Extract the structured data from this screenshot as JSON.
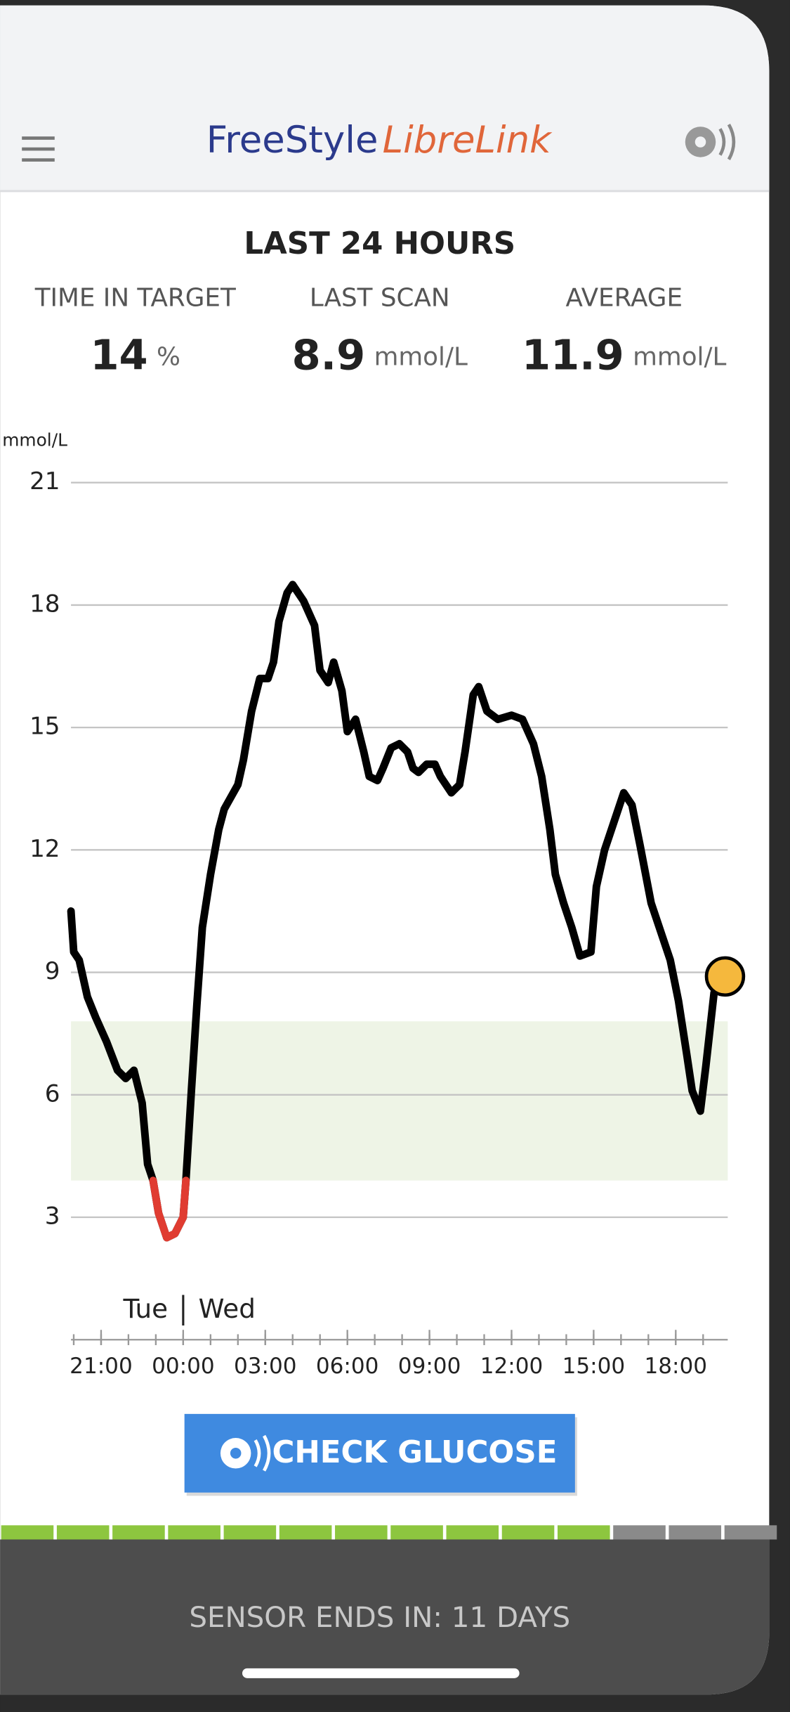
{
  "header": {
    "brand": "FreeStyle",
    "product": "LibreLink"
  },
  "summary": {
    "title": "LAST 24 HOURS",
    "stats": [
      {
        "label": "TIME IN TARGET",
        "value": "14",
        "unit": "%"
      },
      {
        "label": "LAST SCAN",
        "value": "8.9",
        "unit": "mmol/L"
      },
      {
        "label": "AVERAGE",
        "value": "11.9",
        "unit": "mmol/L"
      }
    ]
  },
  "chart_data": {
    "type": "line",
    "y_label": "mmol/L",
    "ylim": [
      0,
      21
    ],
    "yticks": [
      3,
      6,
      9,
      12,
      15,
      18,
      21
    ],
    "grid": true,
    "xlim": [
      19.9,
      43.9
    ],
    "xticks": [
      {
        "value": 21,
        "label": "21:00"
      },
      {
        "value": 24,
        "label": "00:00"
      },
      {
        "value": 27,
        "label": "03:00"
      },
      {
        "value": 30,
        "label": "06:00"
      },
      {
        "value": 33,
        "label": "09:00"
      },
      {
        "value": 36,
        "label": "12:00"
      },
      {
        "value": 39,
        "label": "15:00"
      },
      {
        "value": 42,
        "label": "18:00"
      }
    ],
    "xticks_minor": [
      20,
      21,
      22,
      23,
      24,
      25,
      26,
      27,
      28,
      29,
      30,
      31,
      32,
      33,
      34,
      35,
      36,
      37,
      38,
      39,
      40,
      41,
      42,
      43
    ],
    "day_labels": [
      "Tue",
      "Wed"
    ],
    "target_range": [
      3.9,
      7.8
    ],
    "target_color": "#eef4e6",
    "low_color": "#e03c31",
    "last_point_color": "#f5b83d",
    "x": [
      19.9,
      20.0,
      20.2,
      20.5,
      20.8,
      21.2,
      21.6,
      21.9,
      22.2,
      22.5,
      22.7,
      22.9,
      23.1,
      23.4,
      23.7,
      24.0,
      24.1,
      24.3,
      24.5,
      24.7,
      25.0,
      25.3,
      25.5,
      26.0,
      26.2,
      26.5,
      26.8,
      27.1,
      27.3,
      27.5,
      27.8,
      28.0,
      28.4,
      28.8,
      29.0,
      29.3,
      29.5,
      29.8,
      30.0,
      30.3,
      30.6,
      30.8,
      31.1,
      31.3,
      31.6,
      31.9,
      32.2,
      32.4,
      32.6,
      32.9,
      33.2,
      33.4,
      33.8,
      34.1,
      34.3,
      34.6,
      34.8,
      35.1,
      35.5,
      36.0,
      36.4,
      36.8,
      37.1,
      37.4,
      37.6,
      37.9,
      38.2,
      38.5,
      38.9,
      39.1,
      39.4,
      39.7,
      40.1,
      40.4,
      40.7,
      41.1,
      41.4,
      41.8,
      42.1,
      42.4,
      42.6,
      42.9,
      43.1,
      43.4,
      43.8
    ],
    "series": [
      {
        "color": "#000000",
        "values": [
          10.5,
          9.5,
          9.3,
          8.4,
          7.9,
          7.3,
          6.6,
          6.4,
          6.6,
          5.8,
          4.3,
          3.9,
          3.1,
          2.5,
          2.6,
          3.0,
          3.9,
          6.1,
          8.2,
          10.1,
          11.4,
          12.5,
          13.0,
          13.6,
          14.2,
          15.4,
          16.2,
          16.2,
          16.6,
          17.6,
          18.3,
          18.5,
          18.1,
          17.5,
          16.4,
          16.1,
          16.6,
          15.9,
          14.9,
          15.2,
          14.4,
          13.8,
          13.7,
          14.0,
          14.5,
          14.6,
          14.4,
          14.0,
          13.9,
          14.1,
          14.1,
          13.8,
          13.4,
          13.6,
          14.4,
          15.8,
          16.0,
          15.4,
          15.2,
          15.3,
          15.2,
          14.6,
          13.8,
          12.5,
          11.4,
          10.7,
          10.1,
          9.4,
          9.5,
          11.1,
          12.0,
          12.6,
          13.4,
          13.1,
          12.1,
          10.7,
          10.1,
          9.3,
          8.3,
          7.0,
          6.1,
          5.6,
          6.7,
          8.5,
          8.9
        ]
      }
    ]
  },
  "button": {
    "label": "CHECK GLUCOSE"
  },
  "footer": {
    "sensor": "SENSOR ENDS IN: 11 DAYS"
  }
}
